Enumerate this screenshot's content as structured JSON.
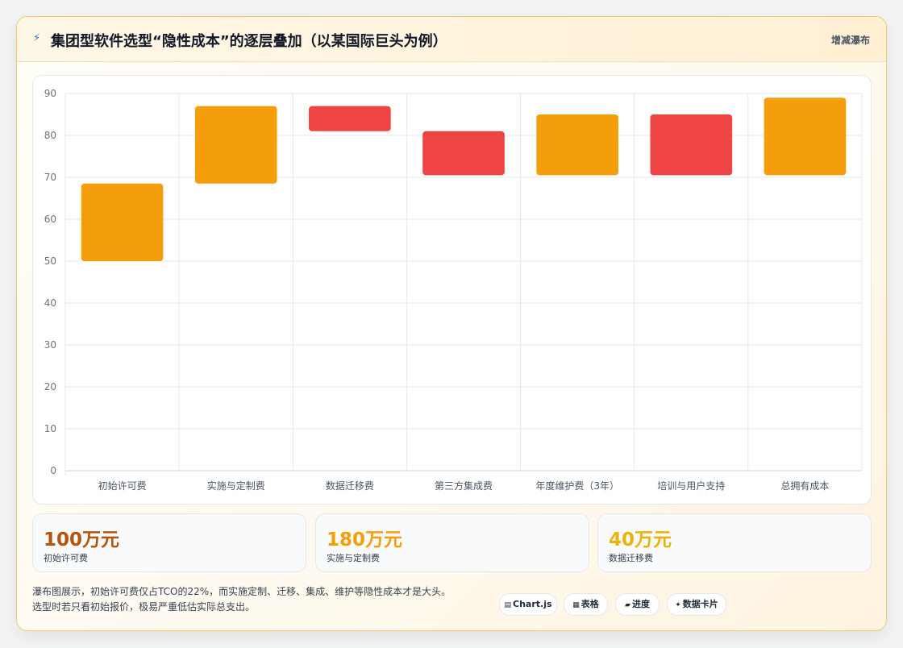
{
  "header": {
    "title": "集团型软件选型“隐性成本”的逐层叠加（以某国际巨头为例）",
    "title_icon": "lightning-icon",
    "tag": "增减瀑布"
  },
  "chart_data": {
    "type": "bar",
    "subtype": "waterfall",
    "categories": [
      "初始许可费",
      "实施与定制费",
      "数据迁移费",
      "第三方集成费",
      "年度维护费（3年）",
      "培训与用户支持",
      "总拥有成本"
    ],
    "ranges": [
      [
        50,
        68.5
      ],
      [
        68.5,
        87
      ],
      [
        81,
        87
      ],
      [
        70.5,
        81
      ],
      [
        70.5,
        85
      ],
      [
        70.5,
        85
      ],
      [
        70.5,
        89
      ]
    ],
    "kinds": [
      "increase",
      "increase",
      "decrease",
      "decrease",
      "increase",
      "decrease",
      "increase"
    ],
    "ylim": [
      0,
      90
    ],
    "yticks": [
      0,
      10,
      20,
      30,
      40,
      50,
      60,
      70,
      80,
      90
    ],
    "grid": true,
    "legend": "none",
    "colors": {
      "increase": "#f59e0b",
      "decrease": "#ef4444"
    }
  },
  "stats": [
    {
      "value": "100万元",
      "label": "初始许可费",
      "color": "#b45309"
    },
    {
      "value": "180万元",
      "label": "实施与定制费",
      "color": "#f59e0b"
    },
    {
      "value": "40万元",
      "label": "数据迁移费",
      "color": "#eab308"
    }
  ],
  "note": {
    "line1": "瀑布图展示，初始许可费仅占TCO的22%，而实施定制、迁移、集成、维护等隐性成本才是大头。",
    "line2": "选型时若只看初始报价，极易严重低估实际总支出。"
  },
  "pills": [
    {
      "icon": "chart-icon",
      "glyph": "▤",
      "label": "Chart.js"
    },
    {
      "icon": "table-icon",
      "glyph": "▦",
      "label": "表格"
    },
    {
      "icon": "progress-icon",
      "glyph": "▰",
      "label": "进度"
    },
    {
      "icon": "data-card-icon",
      "glyph": "✦",
      "label": "数据卡片"
    }
  ]
}
